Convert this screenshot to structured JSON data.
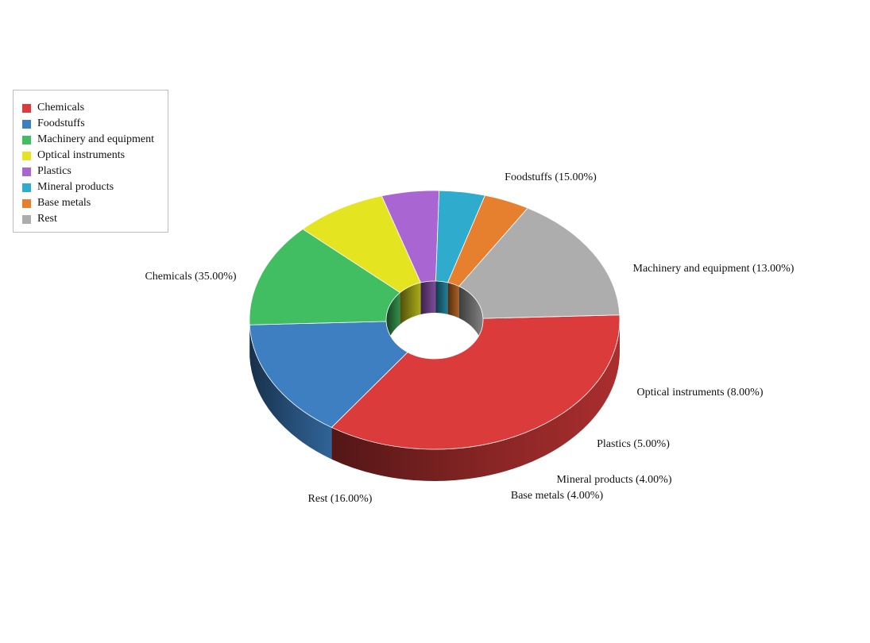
{
  "chart_data": {
    "type": "pie",
    "variant": "3d-donut",
    "title": "",
    "categories": [
      "Chemicals",
      "Foodstuffs",
      "Machinery and equipment",
      "Optical instruments",
      "Plastics",
      "Mineral products",
      "Base metals",
      "Rest"
    ],
    "values": [
      35,
      15,
      13,
      8,
      5,
      4,
      4,
      16
    ],
    "unit": "%",
    "data_labels": [
      "Chemicals (35.00%)",
      "Foodstuffs (15.00%)",
      "Machinery and equipment (13.00%)",
      "Optical instruments (8.00%)",
      "Plastics (5.00%)",
      "Mineral products (4.00%)",
      "Base metals (4.00%)",
      "Rest (16.00%)"
    ],
    "colors": [
      "#db3b3b",
      "#3e7fc1",
      "#41bd62",
      "#e4e421",
      "#a965d1",
      "#2eabcd",
      "#e6802f",
      "#adadad"
    ],
    "legend": {
      "position": "top-left",
      "items": [
        {
          "label": "Chemicals",
          "color": "#db3b3b"
        },
        {
          "label": "Foodstuffs",
          "color": "#3e7fc1"
        },
        {
          "label": "Machinery and equipment",
          "color": "#41bd62"
        },
        {
          "label": "Optical instruments",
          "color": "#e4e421"
        },
        {
          "label": "Plastics",
          "color": "#a965d1"
        },
        {
          "label": "Mineral products",
          "color": "#2eabcd"
        },
        {
          "label": "Base metals",
          "color": "#e6802f"
        },
        {
          "label": "Rest",
          "color": "#adadad"
        }
      ]
    }
  }
}
